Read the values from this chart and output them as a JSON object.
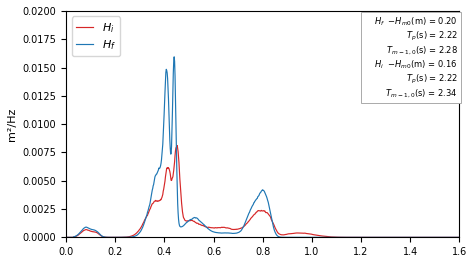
{
  "title": "",
  "xlabel": "",
  "ylabel": "m²/Hz",
  "xlim": [
    0.0,
    1.6
  ],
  "ylim": [
    0.0,
    0.02
  ],
  "yticks": [
    0.0,
    0.0025,
    0.005,
    0.0075,
    0.01,
    0.0125,
    0.015,
    0.0175,
    0.02
  ],
  "xticks": [
    0.0,
    0.2,
    0.4,
    0.6,
    0.8,
    1.0,
    1.2,
    1.4,
    1.6
  ],
  "line_Hi_color": "#d62728",
  "line_Hf_color": "#1f77b4",
  "legend_Hi": "$H_i$",
  "legend_Hf": "$H_f$",
  "background_color": "#ffffff",
  "seed": 42
}
